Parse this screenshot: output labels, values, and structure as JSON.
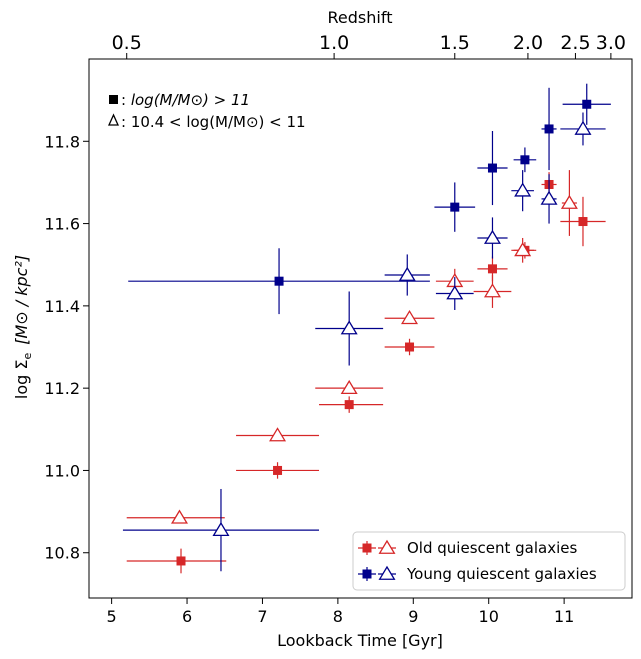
{
  "chart_data": {
    "type": "scatter",
    "xlabel": "Lookback Time [Gyr]",
    "ylabel": "log Σ",
    "ylabel_sub": "e",
    "ylabel_unit": "[M⊙ / kpc²]",
    "top_axis_label": "Redshift",
    "xlim": [
      4.7,
      11.9
    ],
    "ylim": [
      10.69,
      12.0
    ],
    "x_ticks": [
      5,
      6,
      7,
      8,
      9,
      10,
      11
    ],
    "y_ticks": [
      10.8,
      11.0,
      11.2,
      11.4,
      11.6,
      11.8
    ],
    "y_tick_labels": [
      "10.8",
      "11.0",
      "11.2",
      "11.4",
      "11.6",
      "11.8"
    ],
    "top_ticks": [
      {
        "label": "0.5",
        "lookback": 5.2
      },
      {
        "label": "1.0",
        "lookback": 7.95
      },
      {
        "label": "1.5",
        "lookback": 9.55
      },
      {
        "label": "2.0",
        "lookback": 10.52
      },
      {
        "label": "2.5",
        "lookback": 11.15
      },
      {
        "label": "3.0",
        "lookback": 11.62
      }
    ],
    "annotations": [
      {
        "marker": "square",
        "prefix": ": ",
        "text": "log(M/M⊙) > 11"
      },
      {
        "marker": "triangle",
        "prefix": ": ",
        "text": "10.4 < log(M/M⊙) < 11"
      }
    ],
    "legend_position": "lower-right",
    "series": [
      {
        "name": "Old quiescent galaxies",
        "color": "#d62728",
        "marker": "square+triangle",
        "squares": [
          {
            "x": 5.92,
            "y": 10.78,
            "xerr": [
              0.72,
              0.6
            ],
            "yerr": 0.03
          },
          {
            "x": 7.2,
            "y": 11.0,
            "xerr": [
              0.55,
              0.55
            ],
            "yerr": 0.02
          },
          {
            "x": 8.15,
            "y": 11.16,
            "xerr": [
              0.4,
              0.45
            ],
            "yerr": 0.02
          },
          {
            "x": 8.95,
            "y": 11.3,
            "xerr": [
              0.33,
              0.33
            ],
            "yerr": 0.02
          },
          {
            "x": 10.05,
            "y": 11.49,
            "xerr": [
              0.2,
              0.2
            ],
            "yerr": 0.03
          },
          {
            "x": 10.48,
            "y": 11.535,
            "xerr": [
              0.15,
              0.15
            ],
            "yerr": 0.02
          },
          {
            "x": 10.8,
            "y": 11.695,
            "xerr": [
              0.1,
              0.1
            ],
            "yerr": 0.03
          },
          {
            "x": 11.25,
            "y": 11.605,
            "xerr": [
              0.3,
              0.3
            ],
            "yerr": 0.06
          }
        ],
        "triangles": [
          {
            "x": 5.9,
            "y": 10.885,
            "xerr": [
              0.7,
              0.6
            ],
            "yerr": 0.0
          },
          {
            "x": 7.2,
            "y": 11.085,
            "xerr": [
              0.55,
              0.55
            ],
            "yerr": 0.0
          },
          {
            "x": 8.15,
            "y": 11.2,
            "xerr": [
              0.45,
              0.45
            ],
            "yerr": 0.0
          },
          {
            "x": 8.95,
            "y": 11.37,
            "xerr": [
              0.33,
              0.33
            ],
            "yerr": 0.0
          },
          {
            "x": 9.55,
            "y": 11.46,
            "xerr": [
              0.25,
              0.25
            ],
            "yerr": 0.03
          },
          {
            "x": 10.05,
            "y": 11.435,
            "xerr": [
              0.25,
              0.25
            ],
            "yerr": 0.04
          },
          {
            "x": 10.45,
            "y": 11.535,
            "xerr": [
              0.15,
              0.15
            ],
            "yerr": 0.03
          },
          {
            "x": 11.07,
            "y": 11.65,
            "xerr": [
              0.1,
              0.1
            ],
            "yerr": 0.08
          }
        ]
      },
      {
        "name": "Young quiescent galaxies",
        "color": "#00008b",
        "marker": "square+triangle",
        "squares": [
          {
            "x": 7.22,
            "y": 11.46,
            "xerr": [
              2.0,
              2.0
            ],
            "yerr": 0.08
          },
          {
            "x": 9.55,
            "y": 11.64,
            "xerr": [
              0.27,
              0.27
            ],
            "yerr": 0.06
          },
          {
            "x": 10.05,
            "y": 11.735,
            "xerr": [
              0.2,
              0.2
            ],
            "yerr": 0.09
          },
          {
            "x": 10.48,
            "y": 11.755,
            "xerr": [
              0.15,
              0.15
            ],
            "yerr": 0.03
          },
          {
            "x": 10.8,
            "y": 11.83,
            "xerr": [
              0.1,
              0.1
            ],
            "yerr": 0.1
          },
          {
            "x": 11.3,
            "y": 11.89,
            "xerr": [
              0.32,
              0.32
            ],
            "yerr": 0.05
          }
        ],
        "triangles": [
          {
            "x": 6.45,
            "y": 10.855,
            "xerr": [
              1.3,
              1.3
            ],
            "yerr": 0.1
          },
          {
            "x": 8.15,
            "y": 11.345,
            "xerr": [
              0.45,
              0.45
            ],
            "yerr": 0.09
          },
          {
            "x": 8.92,
            "y": 11.475,
            "xerr": [
              0.3,
              0.3
            ],
            "yerr": 0.05
          },
          {
            "x": 9.55,
            "y": 11.43,
            "xerr": [
              0.25,
              0.25
            ],
            "yerr": 0.04
          },
          {
            "x": 10.05,
            "y": 11.565,
            "xerr": [
              0.2,
              0.2
            ],
            "yerr": 0.05
          },
          {
            "x": 10.45,
            "y": 11.68,
            "xerr": [
              0.15,
              0.15
            ],
            "yerr": 0.05
          },
          {
            "x": 10.8,
            "y": 11.66,
            "xerr": [
              0.1,
              0.1
            ],
            "yerr": 0.06
          },
          {
            "x": 11.25,
            "y": 11.83,
            "xerr": [
              0.3,
              0.3
            ],
            "yerr": 0.04
          }
        ]
      }
    ]
  }
}
